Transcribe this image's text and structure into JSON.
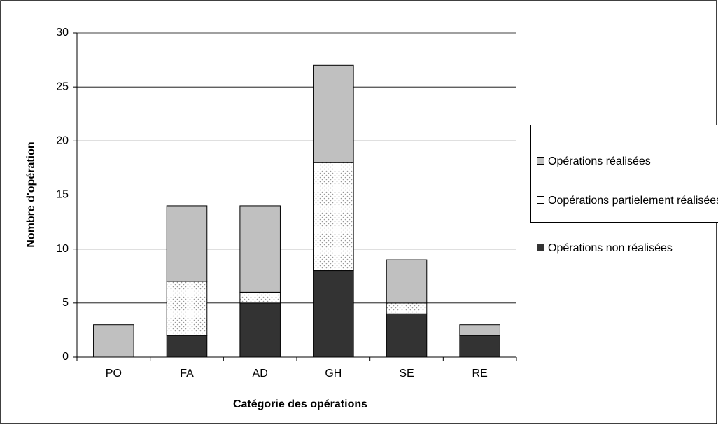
{
  "chart_data": {
    "type": "stacked-bar",
    "categories": [
      "PO",
      "FA",
      "AD",
      "GH",
      "SE",
      "RE"
    ],
    "series": [
      {
        "name": "Opérations non réalisées",
        "color": "#333333",
        "values": [
          0,
          2,
          5,
          8,
          4,
          2
        ]
      },
      {
        "name": "Oopérations partielement réalisées",
        "color": "#ffffff",
        "pattern": "dots",
        "values": [
          0,
          5,
          1,
          10,
          1,
          0
        ]
      },
      {
        "name": "Opérations réalisées",
        "color": "#c0c0c0",
        "values": [
          3,
          7,
          8,
          9,
          4,
          1
        ]
      }
    ],
    "ylim": [
      0,
      30
    ],
    "yticks": [
      0,
      5,
      10,
      15,
      20,
      25,
      30
    ],
    "grid": true,
    "xlabel": "Catégorie des opérations",
    "ylabel": "Nombre d'opération",
    "legend": "right"
  }
}
